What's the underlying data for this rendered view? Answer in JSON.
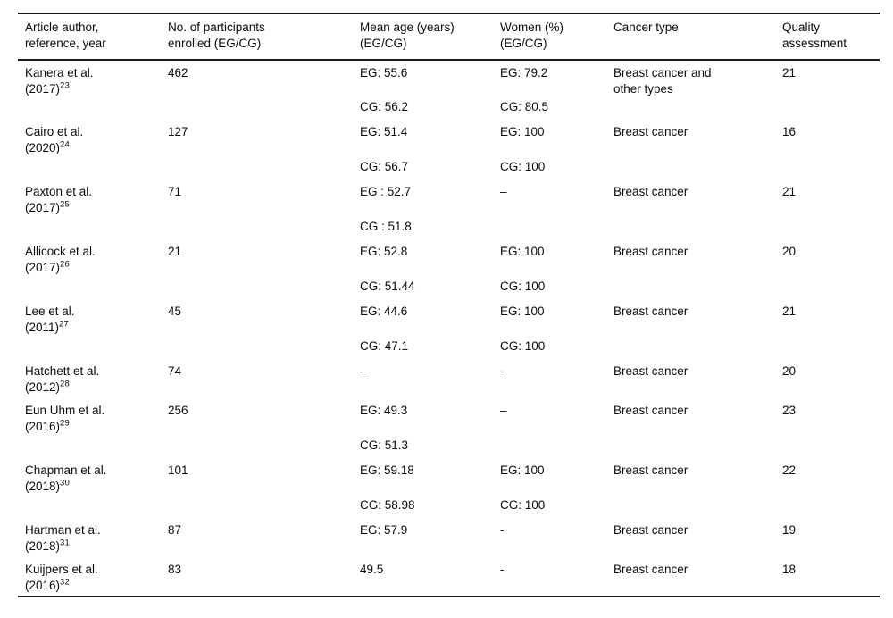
{
  "table": {
    "columns": [
      "Article author,\nreference, year",
      "No. of participants\nenrolled (EG/CG)",
      "Mean age (years)\n(EG/CG)",
      "Women (%)\n(EG/CG)",
      "Cancer type",
      "Quality\nassessment"
    ],
    "rows": [
      {
        "author": "Kanera et al.",
        "year": "(2017)",
        "ref": "23",
        "participants": "462",
        "mean_age": "EG: 55.6",
        "women": "EG: 79.2",
        "cancer_type": "Breast cancer and\nother types",
        "quality": "21",
        "cg": {
          "mean_age": "CG: 56.2",
          "women": "CG: 80.5"
        }
      },
      {
        "author": "Cairo et al.",
        "year": "(2020)",
        "ref": "24",
        "participants": "127",
        "mean_age": "EG: 51.4",
        "women": "EG: 100",
        "cancer_type": "Breast cancer",
        "quality": "16",
        "cg": {
          "mean_age": "CG: 56.7",
          "women": "CG: 100"
        }
      },
      {
        "author": "Paxton et al.",
        "year": "(2017)",
        "ref": "25",
        "participants": "71",
        "mean_age": "EG : 52.7",
        "women": "–",
        "cancer_type": "Breast cancer",
        "quality": "21",
        "cg": {
          "mean_age": "CG : 51.8",
          "women": ""
        }
      },
      {
        "author": "Allicock et al.",
        "year": "(2017)",
        "ref": "26",
        "participants": "21",
        "mean_age": "EG: 52.8",
        "women": "EG: 100",
        "cancer_type": "Breast cancer",
        "quality": "20",
        "cg": {
          "mean_age": "CG: 51.44",
          "women": "CG: 100"
        }
      },
      {
        "author": "Lee et al.",
        "year": "(2011)",
        "ref": "27",
        "participants": "45",
        "mean_age": "EG: 44.6",
        "women": "EG: 100",
        "cancer_type": "Breast cancer",
        "quality": "21",
        "cg": {
          "mean_age": "CG: 47.1",
          "women": "CG: 100"
        }
      },
      {
        "author": "Hatchett et al.",
        "year": "(2012)",
        "ref": "28",
        "participants": "74",
        "mean_age": "–",
        "women": "-",
        "cancer_type": "Breast cancer",
        "quality": "20"
      },
      {
        "author": "Eun Uhm et al.",
        "year": "(2016)",
        "ref": "29",
        "participants": "256",
        "mean_age": "EG: 49.3",
        "women": "–",
        "cancer_type": "Breast cancer",
        "quality": "23",
        "cg": {
          "mean_age": "CG: 51.3",
          "women": ""
        }
      },
      {
        "author": "Chapman et al.",
        "year": "(2018)",
        "ref": "30",
        "participants": "101",
        "mean_age": "EG: 59.18",
        "women": "EG: 100",
        "cancer_type": "Breast cancer",
        "quality": "22",
        "cg": {
          "mean_age": "CG: 58.98",
          "women": "CG: 100"
        }
      },
      {
        "author": "Hartman et al.",
        "year": "(2018)",
        "ref": "31",
        "participants": "87",
        "mean_age": "EG: 57.9",
        "women": "-",
        "cancer_type": "Breast cancer",
        "quality": "19"
      },
      {
        "author": "Kuijpers et al.",
        "year": "(2016)",
        "ref": "32",
        "participants": "83",
        "mean_age": "49.5",
        "women": "-",
        "cancer_type": "Breast cancer",
        "quality": "18"
      }
    ]
  }
}
